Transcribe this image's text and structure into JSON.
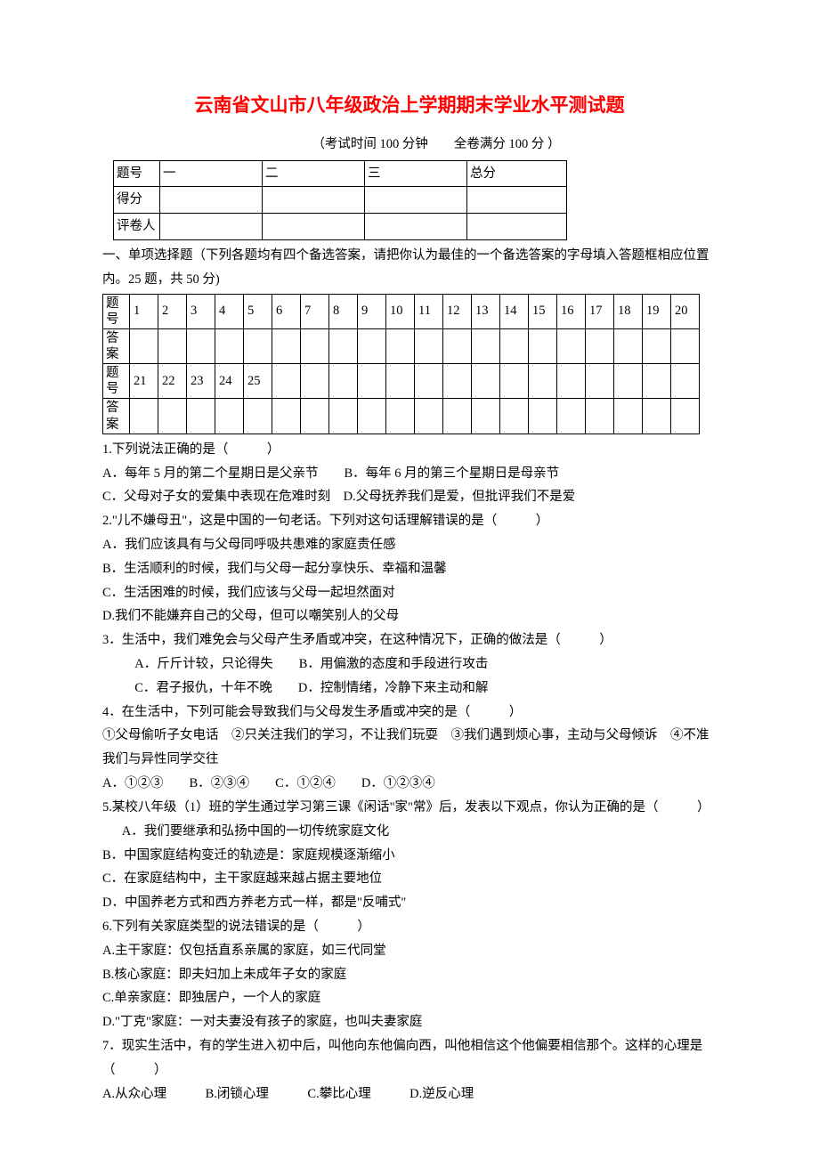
{
  "title": "云南省文山市八年级政治上学期期末学业水平测试题",
  "subtitle": "（考试时间 100 分钟　　全卷满分 100 分 ）",
  "scoreTable": {
    "rows": [
      "题号",
      "得分",
      "评卷人"
    ],
    "cols": [
      "一",
      "二",
      "三",
      "总分"
    ]
  },
  "section1Intro": "一、单项选择题（下列各题均有四个备选答案，请把你认为最佳的一个备选答案的字母填入答题框相应位置内。25 题，共 50 分)",
  "answerTable": {
    "row1Label": "题号",
    "row2Label": "答案",
    "nums1": [
      "1",
      "2",
      "3",
      "4",
      "5",
      "6",
      "7",
      "8",
      "9",
      "10",
      "11",
      "12",
      "13",
      "14",
      "15",
      "16",
      "17",
      "18",
      "19",
      "20"
    ],
    "nums2": [
      "21",
      "22",
      "23",
      "24",
      "25",
      "",
      "",
      "",
      "",
      "",
      "",
      "",
      "",
      "",
      "",
      "",
      "",
      "",
      "",
      ""
    ]
  },
  "q1": {
    "stem": "1.下列说法正确的是（　　　）",
    "a": "A．每年 5 月的第二个星期日是父亲节　　B．每年 6 月的第三个星期日是母亲节",
    "c": "C．父母对子女的爱集中表现在危难时刻　D.父母抚养我们是爱，但批评我们不是爱"
  },
  "q2": {
    "stem": "2.\"儿不嫌母丑\"，这是中国的一句老话。下列对这句话理解错误的是（　　　）",
    "a": "A．我们应该具有与父母同呼吸共患难的家庭责任感",
    "b": "B．生活顺利的时候，我们与父母一起分享快乐、幸福和温馨",
    "c": "C．生活困难的时候，我们应该与父母一起坦然面对",
    "d": "D.我们不能嫌弃自己的父母，但可以嘲笑别人的父母"
  },
  "q3": {
    "stem": "3．生活中，我们难免会与父母产生矛盾或冲突，在这种情况下，正确的做法是（　　　）",
    "a": "A．斤斤计较，只论得失　　B．用偏激的态度和手段进行攻击",
    "c": "C．君子报仇，十年不晚　　D．控制情绪，冷静下来主动和解"
  },
  "q4": {
    "stem": "4．在生活中，下列可能会导致我们与父母发生矛盾或冲突的是（　　　）",
    "items": "①父母偷听子女电话　②只关注我们的学习，不让我们玩耍　③我们遇到烦心事，主动与父母倾诉　④不准我们与异性同学交往",
    "opts": "A．①②③　　B．②③④　　C．①②④　　D．①②③④"
  },
  "q5": {
    "stem": "5.某校八年级（1）班的学生通过学习第三课《闲话\"家\"常》后，发表以下观点，你认为正确的是（　　　）",
    "a": "A．我们要继承和弘扬中国的一切传统家庭文化",
    "b": "B．中国家庭结构变迁的轨迹是：家庭规模逐渐缩小",
    "c": "C．在家庭结构中，主干家庭越来越占据主要地位",
    "d": "D．中国养老方式和西方养老方式一样，都是\"反哺式\""
  },
  "q6": {
    "stem": "6.下列有关家庭类型的说法错误的是（　　　）",
    "a": "A.主干家庭：仅包括直系亲属的家庭，如三代同堂",
    "b": "B.核心家庭：即夫妇加上未成年子女的家庭",
    "c": "C.单亲家庭：即独居户，一个人的家庭",
    "d": "D.\"丁克\"家庭：一对夫妻没有孩子的家庭，也叫夫妻家庭"
  },
  "q7": {
    "stem": "7．现实生活中，有的学生进入初中后，叫他向东他偏向西，叫他相信这个他偏要相信那个。这样的心理是（　　　）",
    "opts": "A.从众心理　　　B.闭锁心理　　　C.攀比心理　　　D.逆反心理"
  }
}
